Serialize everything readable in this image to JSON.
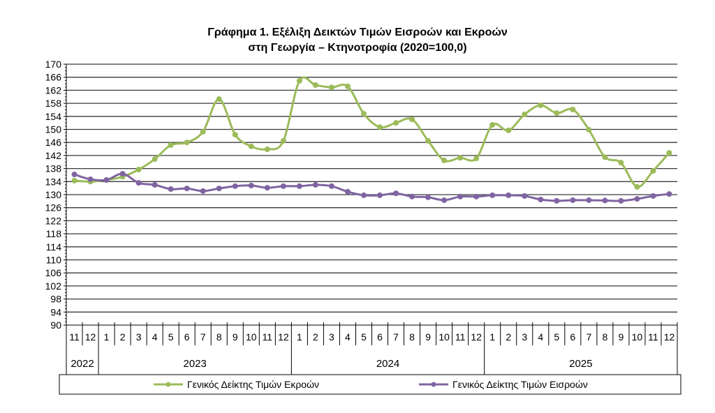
{
  "chart_data": {
    "type": "line",
    "title_line1": "Γράφημα 1. Εξέλιξη Δεικτών Τιμών Εισροών και Εκροών",
    "title_line2": "στη Γεωργία – Κτηνοτροφία (2020=100,0)",
    "ylim": [
      90,
      170
    ],
    "ytick_step": 4,
    "grid": true,
    "legend_placement": "bottom",
    "years": [
      {
        "label": "2022",
        "months": [
          "11",
          "12"
        ]
      },
      {
        "label": "2023",
        "months": [
          "1",
          "2",
          "3",
          "4",
          "5",
          "6",
          "7",
          "8",
          "9",
          "10",
          "11",
          "12"
        ]
      },
      {
        "label": "2024",
        "months": [
          "1",
          "2",
          "3",
          "4",
          "5",
          "6",
          "7",
          "8",
          "9",
          "10",
          "11",
          "12"
        ]
      },
      {
        "label": "2025",
        "months": [
          "1",
          "2",
          "3",
          "4",
          "5",
          "6",
          "7",
          "8",
          "9",
          "10",
          "11",
          "12"
        ]
      }
    ],
    "series": [
      {
        "name": "Γενικός Δείκτης Τιμών Εκροών",
        "color": "#9bbb59",
        "values": [
          134.3,
          134.0,
          134.5,
          135.5,
          137.7,
          140.9,
          145.2,
          146.0,
          149.3,
          159.3,
          148.4,
          144.8,
          143.9,
          146.5,
          164.9,
          163.6,
          162.9,
          163.2,
          154.8,
          150.7,
          152.0,
          153.1,
          146.5,
          140.5,
          141.3,
          141.1,
          151.4,
          149.7,
          154.6,
          157.4,
          155.0,
          156.1,
          149.9,
          141.5,
          139.8,
          132.4,
          137.3,
          142.8
        ]
      },
      {
        "name": "Γενικός Δείκτης Τιμών Εισροών",
        "color": "#8064a2",
        "values": [
          136.2,
          134.7,
          134.5,
          136.4,
          133.6,
          133.0,
          131.7,
          131.9,
          131.1,
          131.9,
          132.6,
          132.8,
          132.1,
          132.6,
          132.6,
          133.0,
          132.6,
          130.9,
          129.8,
          129.8,
          130.4,
          129.4,
          129.2,
          128.3,
          129.4,
          129.4,
          129.8,
          129.8,
          129.6,
          128.5,
          128.1,
          128.3,
          128.3,
          128.2,
          128.1,
          128.7,
          129.6,
          130.2
        ]
      }
    ]
  }
}
